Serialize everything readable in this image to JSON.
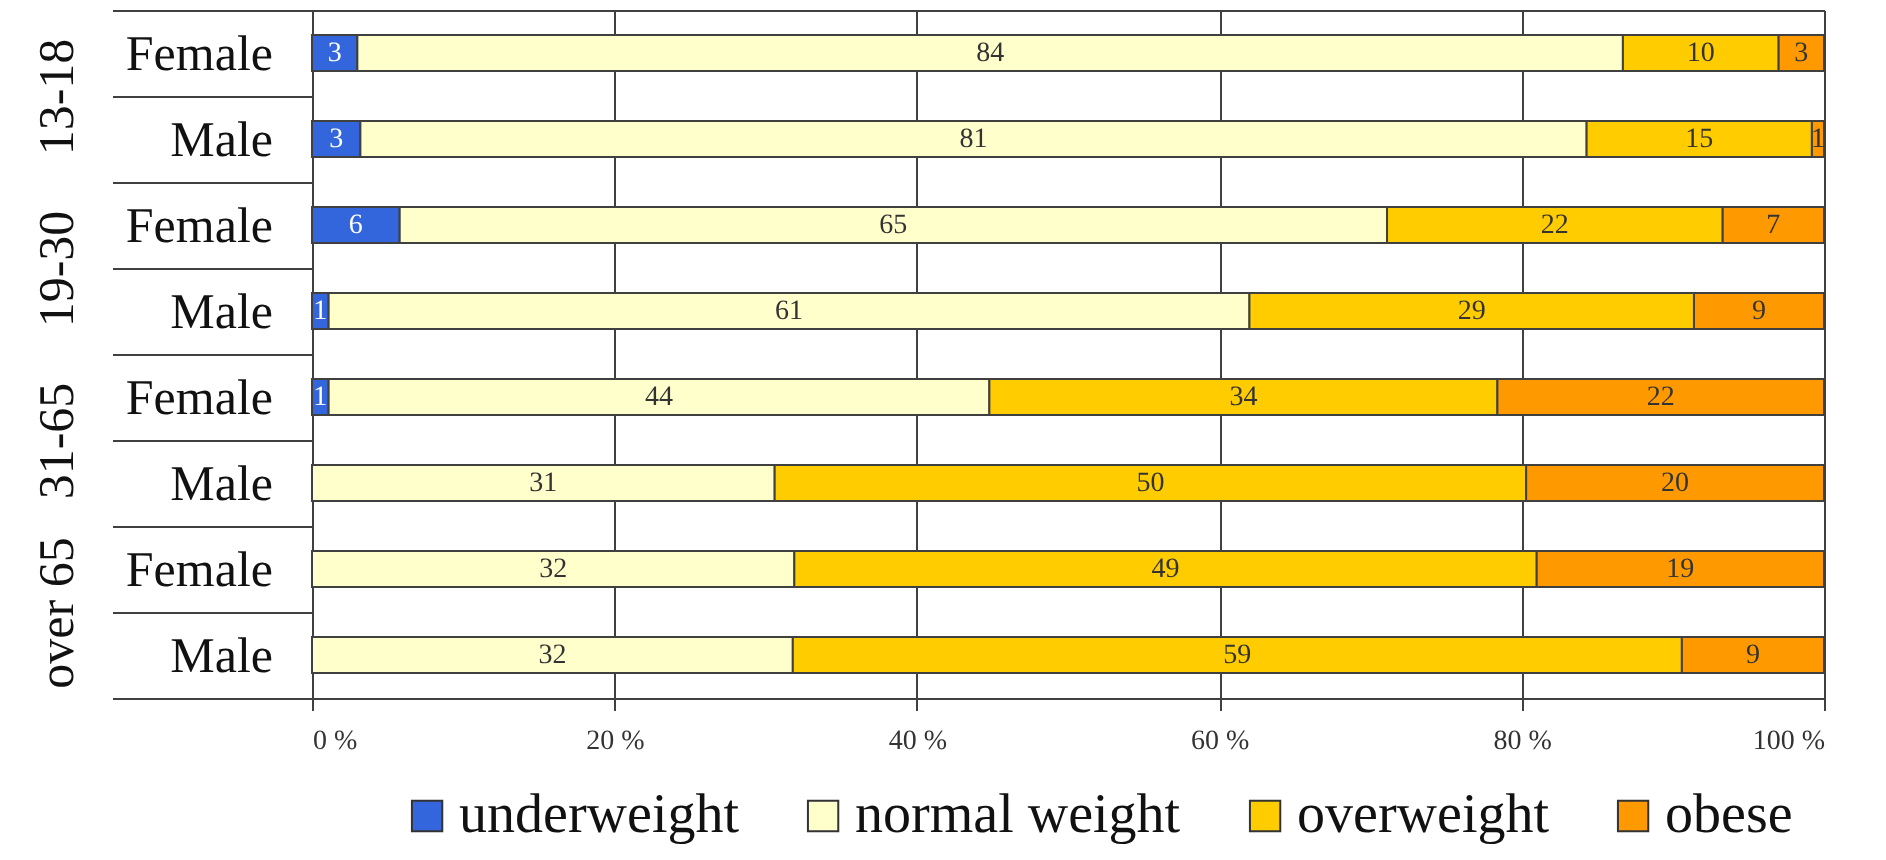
{
  "chart_data": [
    {
      "type": "bar",
      "orientation": "horizontal",
      "stacked": true,
      "ylabel": "13-18",
      "categories": [
        "Female",
        "Male"
      ],
      "series": [
        {
          "color": "#3366dd",
          "values": [
            3.0,
            3.2
          ],
          "value_labels": [
            "3",
            "3"
          ]
        },
        {
          "color": "#ffffcc",
          "values": [
            83.7,
            81.1
          ],
          "value_labels": [
            "84",
            "81"
          ]
        },
        {
          "color": "#ffcc00",
          "values": [
            10.3,
            14.9
          ],
          "value_labels": [
            "10",
            "15"
          ]
        },
        {
          "color": "#ff9900",
          "values": [
            3.0,
            0.8
          ],
          "value_labels": [
            "3",
            "1"
          ]
        }
      ],
      "xlim": [
        0,
        100
      ],
      "xticks": [
        0,
        20,
        40,
        60,
        80,
        100
      ],
      "grid": "x",
      "tick_labels": "y",
      "legend": false
    },
    {
      "type": "bar",
      "orientation": "horizontal",
      "stacked": true,
      "ylabel": "19-30",
      "categories": [
        "Female",
        "Male"
      ],
      "series": [
        {
          "color": "#3366dd",
          "values": [
            5.8,
            1.1
          ],
          "value_labels": [
            "6",
            "1"
          ]
        },
        {
          "color": "#ffffcc",
          "values": [
            65.3,
            60.9
          ],
          "value_labels": [
            "65",
            "61"
          ]
        },
        {
          "color": "#ffcc00",
          "values": [
            22.2,
            29.4
          ],
          "value_labels": [
            "22",
            "29"
          ]
        },
        {
          "color": "#ff9900",
          "values": [
            6.7,
            8.6
          ],
          "value_labels": [
            "7",
            "9"
          ]
        }
      ],
      "xlim": [
        0,
        100
      ],
      "xticks": [
        0,
        20,
        40,
        60,
        80,
        100
      ],
      "grid": "x",
      "tick_labels": "y",
      "legend": false
    },
    {
      "type": "bar",
      "orientation": "horizontal",
      "stacked": true,
      "ylabel": "31-65",
      "categories": [
        "Female",
        "Male"
      ],
      "series": [
        {
          "color": "#3366dd",
          "values": [
            1.1,
            null
          ],
          "value_labels": [
            "1",
            null
          ]
        },
        {
          "color": "#ffffcc",
          "values": [
            43.7,
            30.6
          ],
          "value_labels": [
            "44",
            "31"
          ]
        },
        {
          "color": "#ffcc00",
          "values": [
            33.6,
            49.7
          ],
          "value_labels": [
            "34",
            "50"
          ]
        },
        {
          "color": "#ff9900",
          "values": [
            21.6,
            19.7
          ],
          "value_labels": [
            "22",
            "20"
          ]
        }
      ],
      "xlim": [
        0,
        100
      ],
      "xticks": [
        0,
        20,
        40,
        60,
        80,
        100
      ],
      "grid": "x",
      "tick_labels": "y",
      "legend": false
    },
    {
      "type": "bar",
      "orientation": "horizontal",
      "stacked": true,
      "ylabel": "over 65",
      "categories": [
        "Female",
        "Male"
      ],
      "series": [
        {
          "name": "underweight",
          "color": "#3366dd",
          "values": [
            null,
            null
          ],
          "value_labels": [
            null,
            null
          ]
        },
        {
          "name": "normal weight",
          "color": "#ffffcc",
          "values": [
            31.9,
            31.8
          ],
          "value_labels": [
            "32",
            "32"
          ]
        },
        {
          "name": "overweight",
          "color": "#ffcc00",
          "values": [
            49.1,
            58.8
          ],
          "value_labels": [
            "49",
            "59"
          ]
        },
        {
          "name": "obese",
          "color": "#ff9900",
          "values": [
            19.0,
            9.4
          ],
          "value_labels": [
            "19",
            "9"
          ]
        }
      ],
      "xlim": [
        0,
        100
      ],
      "xticks": [
        {
          "value": 0,
          "label": "0 %"
        },
        {
          "value": 20,
          "label": "20 %"
        },
        {
          "value": 40,
          "label": "40 %"
        },
        {
          "value": 60,
          "label": "60 %"
        },
        {
          "value": 80,
          "label": "80 %"
        },
        {
          "value": 100,
          "label": "100 %"
        }
      ],
      "grid": "x",
      "legend": "bottom"
    }
  ]
}
